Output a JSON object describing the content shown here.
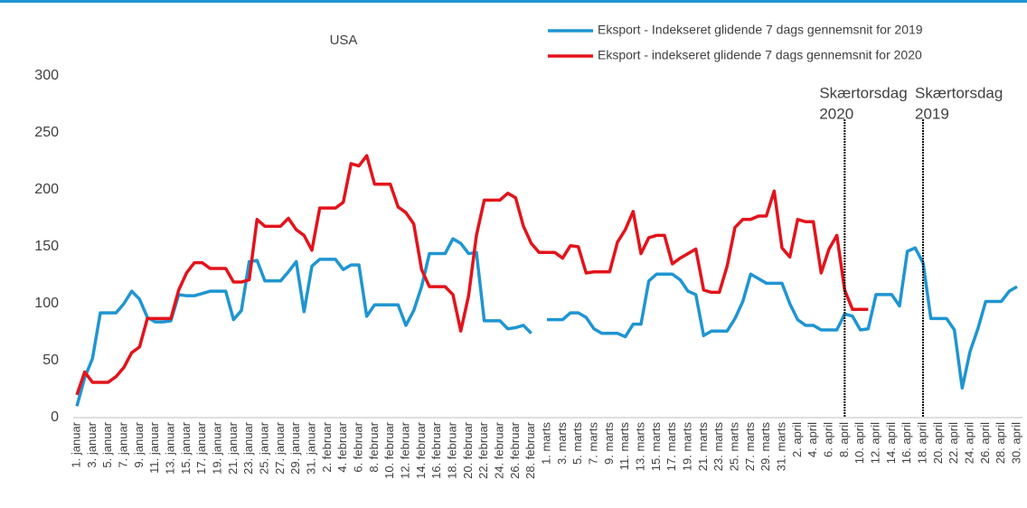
{
  "chart_data": {
    "type": "line",
    "title": "USA",
    "categories": [
      "1. januar",
      null,
      "3. januar",
      null,
      "5. januar",
      null,
      "7. januar",
      null,
      "9. januar",
      null,
      "11. januar",
      null,
      "13. januar",
      null,
      "15. januar",
      null,
      "17. januar",
      null,
      "19. januar",
      null,
      "21. januar",
      null,
      "23. januar",
      null,
      "25. januar",
      null,
      "27. januar",
      null,
      "29. januar",
      null,
      "31. januar",
      null,
      "2. februar",
      null,
      "4. februar",
      null,
      "6. februar",
      null,
      "8. februar",
      null,
      "10. februar",
      null,
      "12. februar",
      null,
      "14. februar",
      null,
      "16. februar",
      null,
      "18. februar",
      null,
      "20. februar",
      null,
      "22. februar",
      null,
      "24. februar",
      null,
      "26. februar",
      null,
      "28. februar",
      null,
      "1. marts",
      null,
      "3. marts",
      null,
      "5. marts",
      null,
      "7. marts",
      null,
      "9. marts",
      null,
      "11. marts",
      null,
      "13. marts",
      null,
      "15. marts",
      null,
      "17. marts",
      null,
      "19. marts",
      null,
      "21. marts",
      null,
      "23. marts",
      null,
      "25. marts",
      null,
      "27. marts",
      null,
      "29. marts",
      null,
      "31. marts",
      null,
      "2. april",
      null,
      "4. april",
      null,
      "6. april",
      null,
      "8. april",
      null,
      "10. april",
      null,
      "12. april",
      null,
      "14. april",
      null,
      "16. april",
      null,
      "18. april",
      null,
      "20. april",
      null,
      "22. april",
      null,
      "24. april",
      null,
      "26. april",
      null,
      "28. april",
      null,
      "30. april"
    ],
    "series": [
      {
        "name": "Eksport - Indekseret glidende 7 dags gennemsnit for 2019",
        "color": "#1f95d2",
        "values": [
          10,
          35,
          52,
          92,
          92,
          92,
          100,
          111,
          104,
          88,
          84,
          84,
          85,
          108,
          107,
          107,
          109,
          111,
          111,
          111,
          86,
          94,
          137,
          138,
          120,
          120,
          120,
          128,
          137,
          93,
          133,
          139,
          139,
          139,
          130,
          134,
          134,
          89,
          99,
          99,
          99,
          99,
          81,
          94,
          115,
          144,
          144,
          144,
          157,
          153,
          144,
          145,
          85,
          85,
          85,
          78,
          79,
          81,
          74,
          null,
          86,
          86,
          86,
          92,
          92,
          88,
          78,
          74,
          74,
          74,
          71,
          82,
          82,
          120,
          126,
          126,
          126,
          121,
          111,
          108,
          72,
          76,
          76,
          76,
          87,
          102,
          126,
          122,
          118,
          118,
          118,
          100,
          86,
          81,
          81,
          77,
          77,
          77,
          91,
          89,
          77,
          78,
          108,
          108,
          108,
          98,
          146,
          149,
          136,
          87,
          87,
          87,
          77,
          26,
          58,
          78,
          102,
          102,
          102,
          111,
          115
        ]
      },
      {
        "name": "Eksport - indekseret glidende 7 dags gennemsnit for 2020",
        "color": "#e3131b",
        "values": [
          20,
          40,
          31,
          31,
          31,
          36,
          44,
          57,
          62,
          87,
          87,
          87,
          87,
          112,
          127,
          136,
          136,
          131,
          131,
          131,
          119,
          119,
          121,
          174,
          168,
          168,
          168,
          175,
          165,
          160,
          147,
          184,
          184,
          184,
          189,
          223,
          221,
          230,
          205,
          205,
          205,
          185,
          180,
          170,
          130,
          115,
          115,
          115,
          108,
          76,
          107,
          160,
          191,
          191,
          191,
          197,
          193,
          168,
          153,
          145,
          145,
          145,
          140,
          151,
          150,
          127,
          128,
          128,
          128,
          154,
          165,
          181,
          144,
          158,
          160,
          160,
          135,
          140,
          144,
          148,
          112,
          110,
          110,
          133,
          167,
          174,
          174,
          177,
          177,
          199,
          149,
          141,
          174,
          172,
          172,
          127,
          148,
          160,
          112,
          95,
          95,
          95,
          null,
          null,
          null,
          null,
          null,
          null,
          null,
          null,
          null,
          null,
          null,
          null,
          null,
          null,
          null,
          null,
          null,
          null,
          null
        ]
      }
    ],
    "ylim": [
      0,
      300
    ],
    "yticks": [
      0,
      50,
      100,
      150,
      200,
      250,
      300
    ],
    "grid": false,
    "annotations": [
      {
        "lines": [
          "Skærtorsdag",
          "2020"
        ],
        "x": "8. april"
      },
      {
        "lines": [
          "Skærtorsdag",
          "2019"
        ],
        "x": "18. april"
      }
    ]
  }
}
